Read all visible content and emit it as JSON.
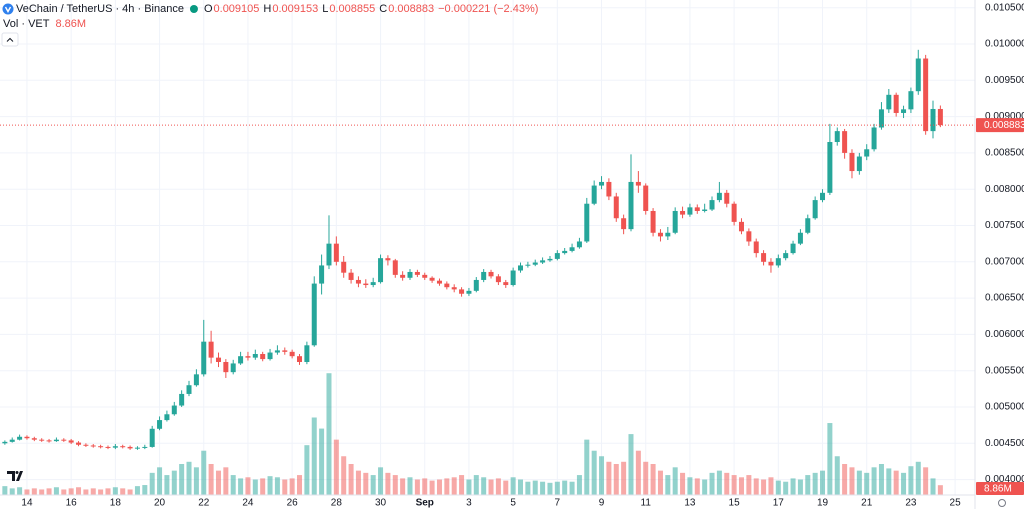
{
  "chart_data": {
    "type": "candlestick",
    "title": "VeChain / TetherUS · 4h · Binance",
    "legend": [
      {
        "label": "O",
        "value": 0.009105
      },
      {
        "label": "H",
        "value": 0.009153
      },
      {
        "label": "L",
        "value": 0.008855
      },
      {
        "label": "C",
        "value": 0.008883
      }
    ],
    "change": "−0.000221 (−2.43%)",
    "volume_title": "Vol · VET",
    "last_volume_label": "8.86M",
    "up_color": "#26a69a",
    "down_color": "#ef5350",
    "grid": true,
    "xlim": [
      12.78,
      56.9
    ],
    "ylim": [
      0.003788,
      0.010606
    ],
    "volume_lim": [
      0,
      140000000
    ],
    "xticks": [
      14,
      16,
      18,
      20,
      22,
      24,
      26,
      28,
      30,
      {
        "value": 32,
        "label": "Sep"
      },
      {
        "value": 34,
        "label": "3"
      },
      {
        "value": 36,
        "label": "5"
      },
      {
        "value": 38,
        "label": "7"
      },
      {
        "value": 40,
        "label": "9"
      },
      {
        "value": 42,
        "label": "11"
      },
      {
        "value": 44,
        "label": "13"
      },
      {
        "value": 46,
        "label": "15"
      },
      {
        "value": 48,
        "label": "17"
      },
      {
        "value": 50,
        "label": "19"
      },
      {
        "value": 52,
        "label": "21"
      },
      {
        "value": 54,
        "label": "23"
      },
      {
        "value": 56,
        "label": "25"
      }
    ],
    "yticks": [
      {
        "value": 0.0105,
        "label": "0.010500"
      },
      {
        "value": 0.01,
        "label": "0.010000"
      },
      {
        "value": 0.0095,
        "label": "0.009500"
      },
      {
        "value": 0.009,
        "label": "0.009000"
      },
      {
        "value": 0.0085,
        "label": "0.008500"
      },
      {
        "value": 0.008,
        "label": "0.008000"
      },
      {
        "value": 0.0075,
        "label": "0.007500"
      },
      {
        "value": 0.007,
        "label": "0.007000"
      },
      {
        "value": 0.0065,
        "label": "0.006500"
      },
      {
        "value": 0.006,
        "label": "0.006000"
      },
      {
        "value": 0.0055,
        "label": "0.005500"
      },
      {
        "value": 0.005,
        "label": "0.005000"
      },
      {
        "value": 0.0045,
        "label": "0.004500"
      },
      {
        "value": 0.004,
        "label": "0.004000"
      }
    ],
    "x": [
      13,
      13.333,
      13.667,
      14,
      14.333,
      14.667,
      15,
      15.333,
      15.667,
      16,
      16.333,
      16.667,
      17,
      17.333,
      17.667,
      18,
      18.333,
      18.667,
      19,
      19.333,
      19.667,
      20,
      20.333,
      20.667,
      21,
      21.333,
      21.667,
      22,
      22.333,
      22.667,
      23,
      23.333,
      23.667,
      24,
      24.333,
      24.667,
      25,
      25.333,
      25.667,
      26,
      26.333,
      26.667,
      27,
      27.333,
      27.667,
      28,
      28.333,
      28.667,
      29,
      29.333,
      29.667,
      30,
      30.333,
      30.667,
      31,
      31.333,
      31.667,
      32,
      32.333,
      32.667,
      33,
      33.333,
      33.667,
      34,
      34.333,
      34.667,
      35,
      35.333,
      35.667,
      36,
      36.333,
      36.667,
      37,
      37.333,
      37.667,
      38,
      38.333,
      38.667,
      39,
      39.333,
      39.667,
      40,
      40.333,
      40.667,
      41,
      41.333,
      41.667,
      42,
      42.333,
      42.667,
      43,
      43.333,
      43.667,
      44,
      44.333,
      44.667,
      45,
      45.333,
      45.667,
      46,
      46.333,
      46.667,
      47,
      47.333,
      47.667,
      48,
      48.333,
      48.667,
      49,
      49.333,
      49.667,
      50,
      50.333,
      50.667,
      51,
      51.333,
      51.667,
      52,
      52.333,
      52.667,
      53,
      53.333,
      53.667,
      54,
      54.333,
      54.667,
      55,
      55.333
    ],
    "open": [
      0.0045,
      0.00452,
      0.00455,
      0.00459,
      0.00457,
      0.00455,
      0.00454,
      0.00453,
      0.00455,
      0.00454,
      0.00451,
      0.00448,
      0.00447,
      0.00446,
      0.00445,
      0.00444,
      0.00446,
      0.00445,
      0.00443,
      0.00444,
      0.00445,
      0.0047,
      0.00482,
      0.0049,
      0.00502,
      0.00518,
      0.0053,
      0.00545,
      0.0059,
      0.00568,
      0.00562,
      0.00548,
      0.0056,
      0.0057,
      0.00568,
      0.00573,
      0.00566,
      0.00575,
      0.00578,
      0.00576,
      0.0057,
      0.00562,
      0.00585,
      0.0067,
      0.00695,
      0.00725,
      0.007,
      0.00685,
      0.00675,
      0.0067,
      0.00668,
      0.00672,
      0.00705,
      0.00702,
      0.00682,
      0.00678,
      0.00686,
      0.00682,
      0.00678,
      0.00674,
      0.0067,
      0.00665,
      0.00662,
      0.00656,
      0.0066,
      0.00675,
      0.00686,
      0.0068,
      0.00672,
      0.00668,
      0.00688,
      0.00695,
      0.00696,
      0.00699,
      0.00702,
      0.00704,
      0.00712,
      0.00715,
      0.0072,
      0.00728,
      0.0078,
      0.00805,
      0.0081,
      0.0079,
      0.0076,
      0.00745,
      0.0081,
      0.00805,
      0.0077,
      0.0074,
      0.00735,
      0.0074,
      0.0077,
      0.00765,
      0.00775,
      0.0077,
      0.00772,
      0.00785,
      0.00795,
      0.0078,
      0.00755,
      0.00742,
      0.00728,
      0.00712,
      0.007,
      0.00695,
      0.00705,
      0.00712,
      0.00725,
      0.0074,
      0.0076,
      0.00785,
      0.00795,
      0.00865,
      0.0088,
      0.0085,
      0.00825,
      0.00845,
      0.00855,
      0.00885,
      0.0091,
      0.0093,
      0.00905,
      0.0091,
      0.00935,
      0.0098,
      0.0088,
      0.009105
    ],
    "high": [
      0.00454,
      0.00458,
      0.00462,
      0.00461,
      0.00459,
      0.00457,
      0.00456,
      0.00458,
      0.00457,
      0.00456,
      0.00453,
      0.0045,
      0.00449,
      0.00448,
      0.00447,
      0.00449,
      0.00448,
      0.00447,
      0.00446,
      0.00448,
      0.00474,
      0.00487,
      0.00495,
      0.00507,
      0.00523,
      0.00536,
      0.00552,
      0.0062,
      0.00605,
      0.00575,
      0.00566,
      0.00565,
      0.00576,
      0.00576,
      0.00579,
      0.00576,
      0.0058,
      0.00585,
      0.00582,
      0.00579,
      0.00573,
      0.0059,
      0.0068,
      0.0071,
      0.00764,
      0.00735,
      0.00708,
      0.0069,
      0.0068,
      0.00676,
      0.00678,
      0.0071,
      0.00709,
      0.00704,
      0.00687,
      0.0069,
      0.00689,
      0.00685,
      0.0068,
      0.00677,
      0.00673,
      0.00669,
      0.00665,
      0.00664,
      0.00679,
      0.0069,
      0.00689,
      0.00683,
      0.00675,
      0.00692,
      0.00699,
      0.007,
      0.00703,
      0.00706,
      0.00708,
      0.00716,
      0.00719,
      0.00725,
      0.00733,
      0.00788,
      0.00812,
      0.00818,
      0.00815,
      0.00795,
      0.00765,
      0.00848,
      0.00825,
      0.00808,
      0.00774,
      0.00745,
      0.00748,
      0.00775,
      0.00776,
      0.0078,
      0.00779,
      0.0078,
      0.0079,
      0.0081,
      0.00799,
      0.00783,
      0.0076,
      0.00746,
      0.00732,
      0.00716,
      0.00705,
      0.0071,
      0.00716,
      0.00729,
      0.00745,
      0.00765,
      0.0079,
      0.008,
      0.0089,
      0.00885,
      0.00883,
      0.00855,
      0.0085,
      0.00862,
      0.0089,
      0.0092,
      0.00938,
      0.00933,
      0.00915,
      0.0094,
      0.00992,
      0.00985,
      0.00922,
      0.009153
    ],
    "low": [
      0.00448,
      0.00451,
      0.00454,
      0.00455,
      0.00453,
      0.00452,
      0.00451,
      0.00452,
      0.00452,
      0.00449,
      0.00446,
      0.00445,
      0.00444,
      0.00443,
      0.00442,
      0.00442,
      0.00443,
      0.00441,
      0.00441,
      0.00442,
      0.00444,
      0.00468,
      0.0048,
      0.00488,
      0.005,
      0.00515,
      0.00528,
      0.00542,
      0.0056,
      0.00555,
      0.0054,
      0.00545,
      0.00558,
      0.00564,
      0.00565,
      0.00563,
      0.00564,
      0.00572,
      0.00572,
      0.00567,
      0.00558,
      0.00559,
      0.00583,
      0.00655,
      0.0069,
      0.00695,
      0.00678,
      0.0067,
      0.00665,
      0.00664,
      0.00665,
      0.0067,
      0.00695,
      0.00678,
      0.00674,
      0.00675,
      0.00679,
      0.00675,
      0.00671,
      0.00667,
      0.00662,
      0.00658,
      0.00652,
      0.00653,
      0.00658,
      0.00672,
      0.00677,
      0.00668,
      0.00664,
      0.00666,
      0.00685,
      0.00692,
      0.00694,
      0.00697,
      0.007,
      0.00702,
      0.0071,
      0.00713,
      0.00718,
      0.00726,
      0.00778,
      0.008,
      0.00785,
      0.00755,
      0.00738,
      0.00742,
      0.00795,
      0.00765,
      0.00735,
      0.00728,
      0.0073,
      0.00738,
      0.0076,
      0.00762,
      0.00766,
      0.00768,
      0.0077,
      0.00782,
      0.00775,
      0.0075,
      0.00738,
      0.00722,
      0.00706,
      0.00695,
      0.00685,
      0.00692,
      0.00702,
      0.0071,
      0.00723,
      0.00738,
      0.00758,
      0.00782,
      0.00792,
      0.0086,
      0.00842,
      0.00815,
      0.0082,
      0.0084,
      0.00852,
      0.00882,
      0.00905,
      0.009,
      0.00898,
      0.00905,
      0.0093,
      0.00875,
      0.0087,
      0.008855
    ],
    "close": [
      0.00452,
      0.00455,
      0.00459,
      0.00457,
      0.00455,
      0.00454,
      0.00453,
      0.00455,
      0.00454,
      0.00451,
      0.00448,
      0.00447,
      0.00446,
      0.00445,
      0.00444,
      0.00446,
      0.00445,
      0.00443,
      0.00444,
      0.00445,
      0.0047,
      0.00482,
      0.0049,
      0.00502,
      0.00518,
      0.0053,
      0.00545,
      0.0059,
      0.00568,
      0.00562,
      0.00548,
      0.0056,
      0.0057,
      0.00568,
      0.00573,
      0.00566,
      0.00575,
      0.00578,
      0.00576,
      0.0057,
      0.00562,
      0.00585,
      0.0067,
      0.00695,
      0.00725,
      0.007,
      0.00685,
      0.00675,
      0.0067,
      0.00668,
      0.00672,
      0.00705,
      0.00702,
      0.00682,
      0.00678,
      0.00686,
      0.00682,
      0.00678,
      0.00674,
      0.0067,
      0.00665,
      0.00662,
      0.00656,
      0.0066,
      0.00675,
      0.00686,
      0.0068,
      0.00672,
      0.00668,
      0.00688,
      0.00695,
      0.00696,
      0.00699,
      0.00702,
      0.00704,
      0.00712,
      0.00715,
      0.0072,
      0.00728,
      0.0078,
      0.00805,
      0.0081,
      0.0079,
      0.0076,
      0.00745,
      0.0081,
      0.00805,
      0.0077,
      0.0074,
      0.00735,
      0.0074,
      0.0077,
      0.00765,
      0.00775,
      0.0077,
      0.00772,
      0.00785,
      0.00795,
      0.0078,
      0.00755,
      0.00742,
      0.00728,
      0.00712,
      0.007,
      0.00695,
      0.00705,
      0.00712,
      0.00725,
      0.0074,
      0.0076,
      0.00785,
      0.00795,
      0.00865,
      0.0088,
      0.0085,
      0.00825,
      0.00845,
      0.00855,
      0.00885,
      0.0091,
      0.0093,
      0.00905,
      0.0091,
      0.00935,
      0.0098,
      0.0088,
      0.009105,
      0.008883
    ],
    "volume": [
      8000000,
      6000000,
      7000000,
      5000000,
      6000000,
      5000000,
      6000000,
      7000000,
      5000000,
      6000000,
      7000000,
      5000000,
      6000000,
      5000000,
      6000000,
      7000000,
      6000000,
      5000000,
      8000000,
      9000000,
      20000000,
      25000000,
      18000000,
      22000000,
      28000000,
      30000000,
      25000000,
      40000000,
      28000000,
      22000000,
      25000000,
      18000000,
      15000000,
      16000000,
      14000000,
      15000000,
      17000000,
      16000000,
      14000000,
      15000000,
      18000000,
      45000000,
      70000000,
      60000000,
      110000000,
      50000000,
      35000000,
      28000000,
      22000000,
      20000000,
      18000000,
      25000000,
      20000000,
      18000000,
      15000000,
      16000000,
      14000000,
      15000000,
      13000000,
      14000000,
      15000000,
      16000000,
      18000000,
      14000000,
      18000000,
      16000000,
      14000000,
      15000000,
      13000000,
      16000000,
      14000000,
      12000000,
      13000000,
      12000000,
      11000000,
      12000000,
      13000000,
      12000000,
      18000000,
      50000000,
      40000000,
      35000000,
      30000000,
      28000000,
      30000000,
      55000000,
      40000000,
      30000000,
      28000000,
      22000000,
      18000000,
      25000000,
      20000000,
      16000000,
      15000000,
      14000000,
      20000000,
      22000000,
      20000000,
      18000000,
      16000000,
      18000000,
      15000000,
      14000000,
      16000000,
      13000000,
      12000000,
      15000000,
      14000000,
      18000000,
      20000000,
      22000000,
      65000000,
      35000000,
      28000000,
      25000000,
      22000000,
      20000000,
      25000000,
      28000000,
      24000000,
      22000000,
      20000000,
      26000000,
      30000000,
      25000000,
      15000000,
      8860000
    ]
  }
}
